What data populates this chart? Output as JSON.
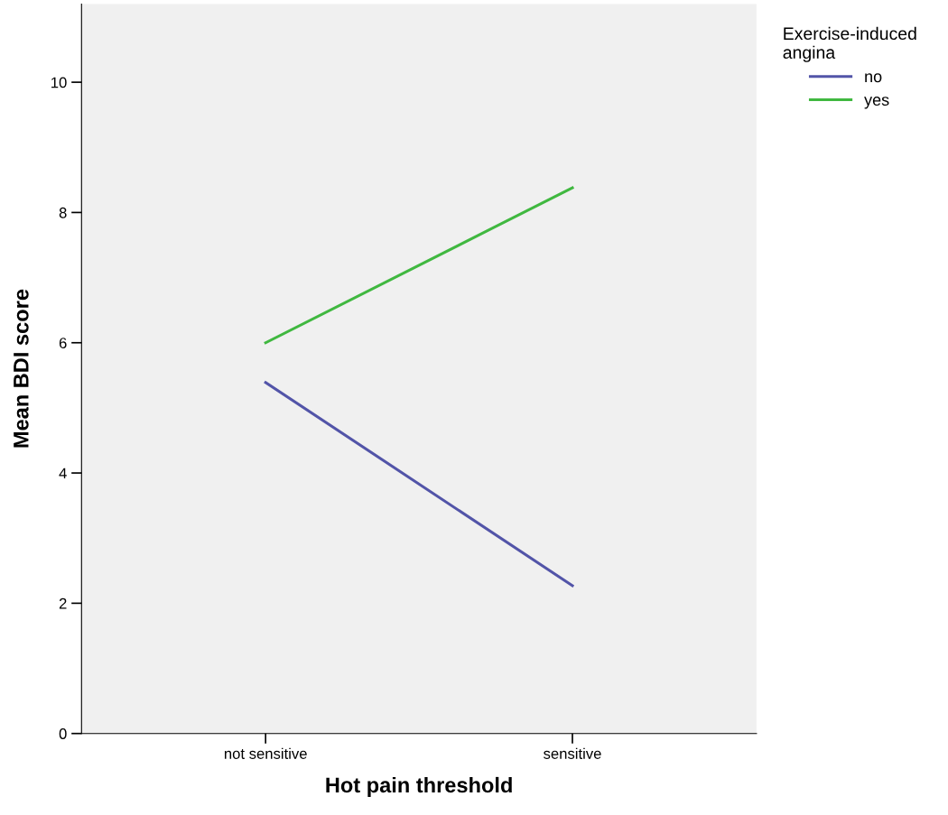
{
  "chart_data": {
    "type": "line",
    "xlabel": "Hot pain threshold",
    "ylabel": "Mean BDI score",
    "legend_title": "Exercise-induced\nangina",
    "categories": [
      "not sensitive",
      "sensitive"
    ],
    "series": [
      {
        "name": "no",
        "color": "#5254a8",
        "values": [
          5.39,
          2.27
        ]
      },
      {
        "name": "yes",
        "color": "#40b840",
        "values": [
          6.0,
          8.38
        ]
      }
    ],
    "ylim": [
      0,
      11.2
    ],
    "yticks": [
      0,
      2,
      4,
      6,
      8,
      10
    ],
    "grid": false,
    "legend": "top right",
    "marker": "none",
    "line_style": "solid"
  }
}
